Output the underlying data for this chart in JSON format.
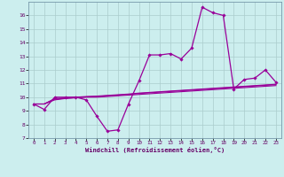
{
  "xlabel": "Windchill (Refroidissement éolien,°C)",
  "x": [
    0,
    1,
    2,
    3,
    4,
    5,
    6,
    7,
    8,
    9,
    10,
    11,
    12,
    13,
    14,
    15,
    16,
    17,
    18,
    19,
    20,
    21,
    22,
    23
  ],
  "main_y": [
    9.5,
    9.1,
    10.0,
    10.0,
    10.0,
    9.8,
    8.6,
    7.5,
    7.6,
    9.5,
    11.2,
    13.1,
    13.1,
    13.2,
    12.8,
    13.6,
    16.6,
    16.2,
    16.0,
    10.6,
    11.3,
    11.4,
    12.0,
    11.1
  ],
  "line2_y": [
    9.5,
    9.5,
    9.8,
    9.9,
    9.95,
    10.0,
    10.0,
    10.05,
    10.1,
    10.15,
    10.2,
    10.25,
    10.3,
    10.35,
    10.4,
    10.45,
    10.5,
    10.55,
    10.6,
    10.65,
    10.7,
    10.75,
    10.8,
    10.85
  ],
  "line3_y": [
    9.5,
    9.5,
    9.85,
    9.92,
    9.97,
    10.02,
    10.05,
    10.1,
    10.15,
    10.2,
    10.27,
    10.32,
    10.37,
    10.42,
    10.47,
    10.52,
    10.57,
    10.62,
    10.67,
    10.72,
    10.77,
    10.82,
    10.87,
    10.92
  ],
  "line4_y": [
    9.5,
    9.5,
    9.9,
    9.95,
    10.0,
    10.05,
    10.08,
    10.13,
    10.18,
    10.23,
    10.3,
    10.35,
    10.4,
    10.45,
    10.5,
    10.55,
    10.6,
    10.65,
    10.7,
    10.75,
    10.8,
    10.85,
    10.9,
    10.95
  ],
  "line_color": "#990099",
  "bg_color": "#cceeee",
  "grid_color": "#aacccc",
  "ylim": [
    7,
    17
  ],
  "xlim": [
    -0.5,
    23.5
  ],
  "yticks": [
    7,
    8,
    9,
    10,
    11,
    12,
    13,
    14,
    15,
    16
  ],
  "xticks": [
    0,
    1,
    2,
    3,
    4,
    5,
    6,
    7,
    8,
    9,
    10,
    11,
    12,
    13,
    14,
    15,
    16,
    17,
    18,
    19,
    20,
    21,
    22,
    23
  ]
}
